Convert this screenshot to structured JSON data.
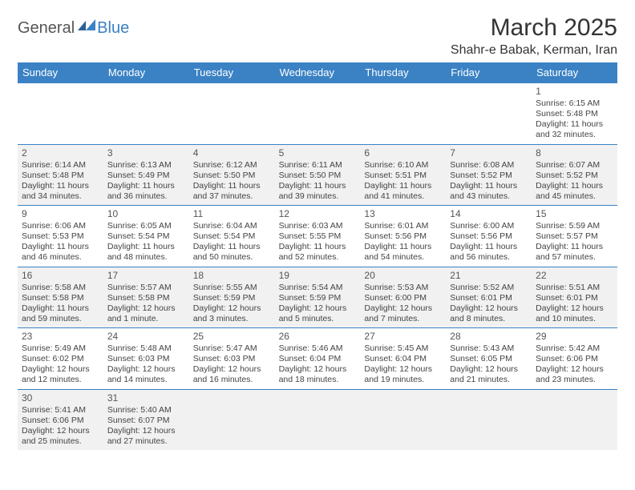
{
  "logo": {
    "part1": "General",
    "part2": "Blue"
  },
  "header": {
    "title": "March 2025",
    "location": "Shahr-e Babak, Kerman, Iran"
  },
  "colors": {
    "headerBar": "#3b82c4",
    "headerText": "#ffffff",
    "cellBorder": "#3b82c4",
    "altRowBg": "#f1f1f1",
    "bodyText": "#444444",
    "titleText": "#333333"
  },
  "dayNames": [
    "Sunday",
    "Monday",
    "Tuesday",
    "Wednesday",
    "Thursday",
    "Friday",
    "Saturday"
  ],
  "weeks": [
    [
      null,
      null,
      null,
      null,
      null,
      null,
      {
        "n": "1",
        "sr": "6:15 AM",
        "ss": "5:48 PM",
        "dl": "11 hours and 32 minutes."
      }
    ],
    [
      {
        "n": "2",
        "sr": "6:14 AM",
        "ss": "5:48 PM",
        "dl": "11 hours and 34 minutes."
      },
      {
        "n": "3",
        "sr": "6:13 AM",
        "ss": "5:49 PM",
        "dl": "11 hours and 36 minutes."
      },
      {
        "n": "4",
        "sr": "6:12 AM",
        "ss": "5:50 PM",
        "dl": "11 hours and 37 minutes."
      },
      {
        "n": "5",
        "sr": "6:11 AM",
        "ss": "5:50 PM",
        "dl": "11 hours and 39 minutes."
      },
      {
        "n": "6",
        "sr": "6:10 AM",
        "ss": "5:51 PM",
        "dl": "11 hours and 41 minutes."
      },
      {
        "n": "7",
        "sr": "6:08 AM",
        "ss": "5:52 PM",
        "dl": "11 hours and 43 minutes."
      },
      {
        "n": "8",
        "sr": "6:07 AM",
        "ss": "5:52 PM",
        "dl": "11 hours and 45 minutes."
      }
    ],
    [
      {
        "n": "9",
        "sr": "6:06 AM",
        "ss": "5:53 PM",
        "dl": "11 hours and 46 minutes."
      },
      {
        "n": "10",
        "sr": "6:05 AM",
        "ss": "5:54 PM",
        "dl": "11 hours and 48 minutes."
      },
      {
        "n": "11",
        "sr": "6:04 AM",
        "ss": "5:54 PM",
        "dl": "11 hours and 50 minutes."
      },
      {
        "n": "12",
        "sr": "6:03 AM",
        "ss": "5:55 PM",
        "dl": "11 hours and 52 minutes."
      },
      {
        "n": "13",
        "sr": "6:01 AM",
        "ss": "5:56 PM",
        "dl": "11 hours and 54 minutes."
      },
      {
        "n": "14",
        "sr": "6:00 AM",
        "ss": "5:56 PM",
        "dl": "11 hours and 56 minutes."
      },
      {
        "n": "15",
        "sr": "5:59 AM",
        "ss": "5:57 PM",
        "dl": "11 hours and 57 minutes."
      }
    ],
    [
      {
        "n": "16",
        "sr": "5:58 AM",
        "ss": "5:58 PM",
        "dl": "11 hours and 59 minutes."
      },
      {
        "n": "17",
        "sr": "5:57 AM",
        "ss": "5:58 PM",
        "dl": "12 hours and 1 minute."
      },
      {
        "n": "18",
        "sr": "5:55 AM",
        "ss": "5:59 PM",
        "dl": "12 hours and 3 minutes."
      },
      {
        "n": "19",
        "sr": "5:54 AM",
        "ss": "5:59 PM",
        "dl": "12 hours and 5 minutes."
      },
      {
        "n": "20",
        "sr": "5:53 AM",
        "ss": "6:00 PM",
        "dl": "12 hours and 7 minutes."
      },
      {
        "n": "21",
        "sr": "5:52 AM",
        "ss": "6:01 PM",
        "dl": "12 hours and 8 minutes."
      },
      {
        "n": "22",
        "sr": "5:51 AM",
        "ss": "6:01 PM",
        "dl": "12 hours and 10 minutes."
      }
    ],
    [
      {
        "n": "23",
        "sr": "5:49 AM",
        "ss": "6:02 PM",
        "dl": "12 hours and 12 minutes."
      },
      {
        "n": "24",
        "sr": "5:48 AM",
        "ss": "6:03 PM",
        "dl": "12 hours and 14 minutes."
      },
      {
        "n": "25",
        "sr": "5:47 AM",
        "ss": "6:03 PM",
        "dl": "12 hours and 16 minutes."
      },
      {
        "n": "26",
        "sr": "5:46 AM",
        "ss": "6:04 PM",
        "dl": "12 hours and 18 minutes."
      },
      {
        "n": "27",
        "sr": "5:45 AM",
        "ss": "6:04 PM",
        "dl": "12 hours and 19 minutes."
      },
      {
        "n": "28",
        "sr": "5:43 AM",
        "ss": "6:05 PM",
        "dl": "12 hours and 21 minutes."
      },
      {
        "n": "29",
        "sr": "5:42 AM",
        "ss": "6:06 PM",
        "dl": "12 hours and 23 minutes."
      }
    ],
    [
      {
        "n": "30",
        "sr": "5:41 AM",
        "ss": "6:06 PM",
        "dl": "12 hours and 25 minutes."
      },
      {
        "n": "31",
        "sr": "5:40 AM",
        "ss": "6:07 PM",
        "dl": "12 hours and 27 minutes."
      },
      null,
      null,
      null,
      null,
      null
    ]
  ],
  "labels": {
    "sunrise": "Sunrise: ",
    "sunset": "Sunset: ",
    "daylight": "Daylight: "
  }
}
